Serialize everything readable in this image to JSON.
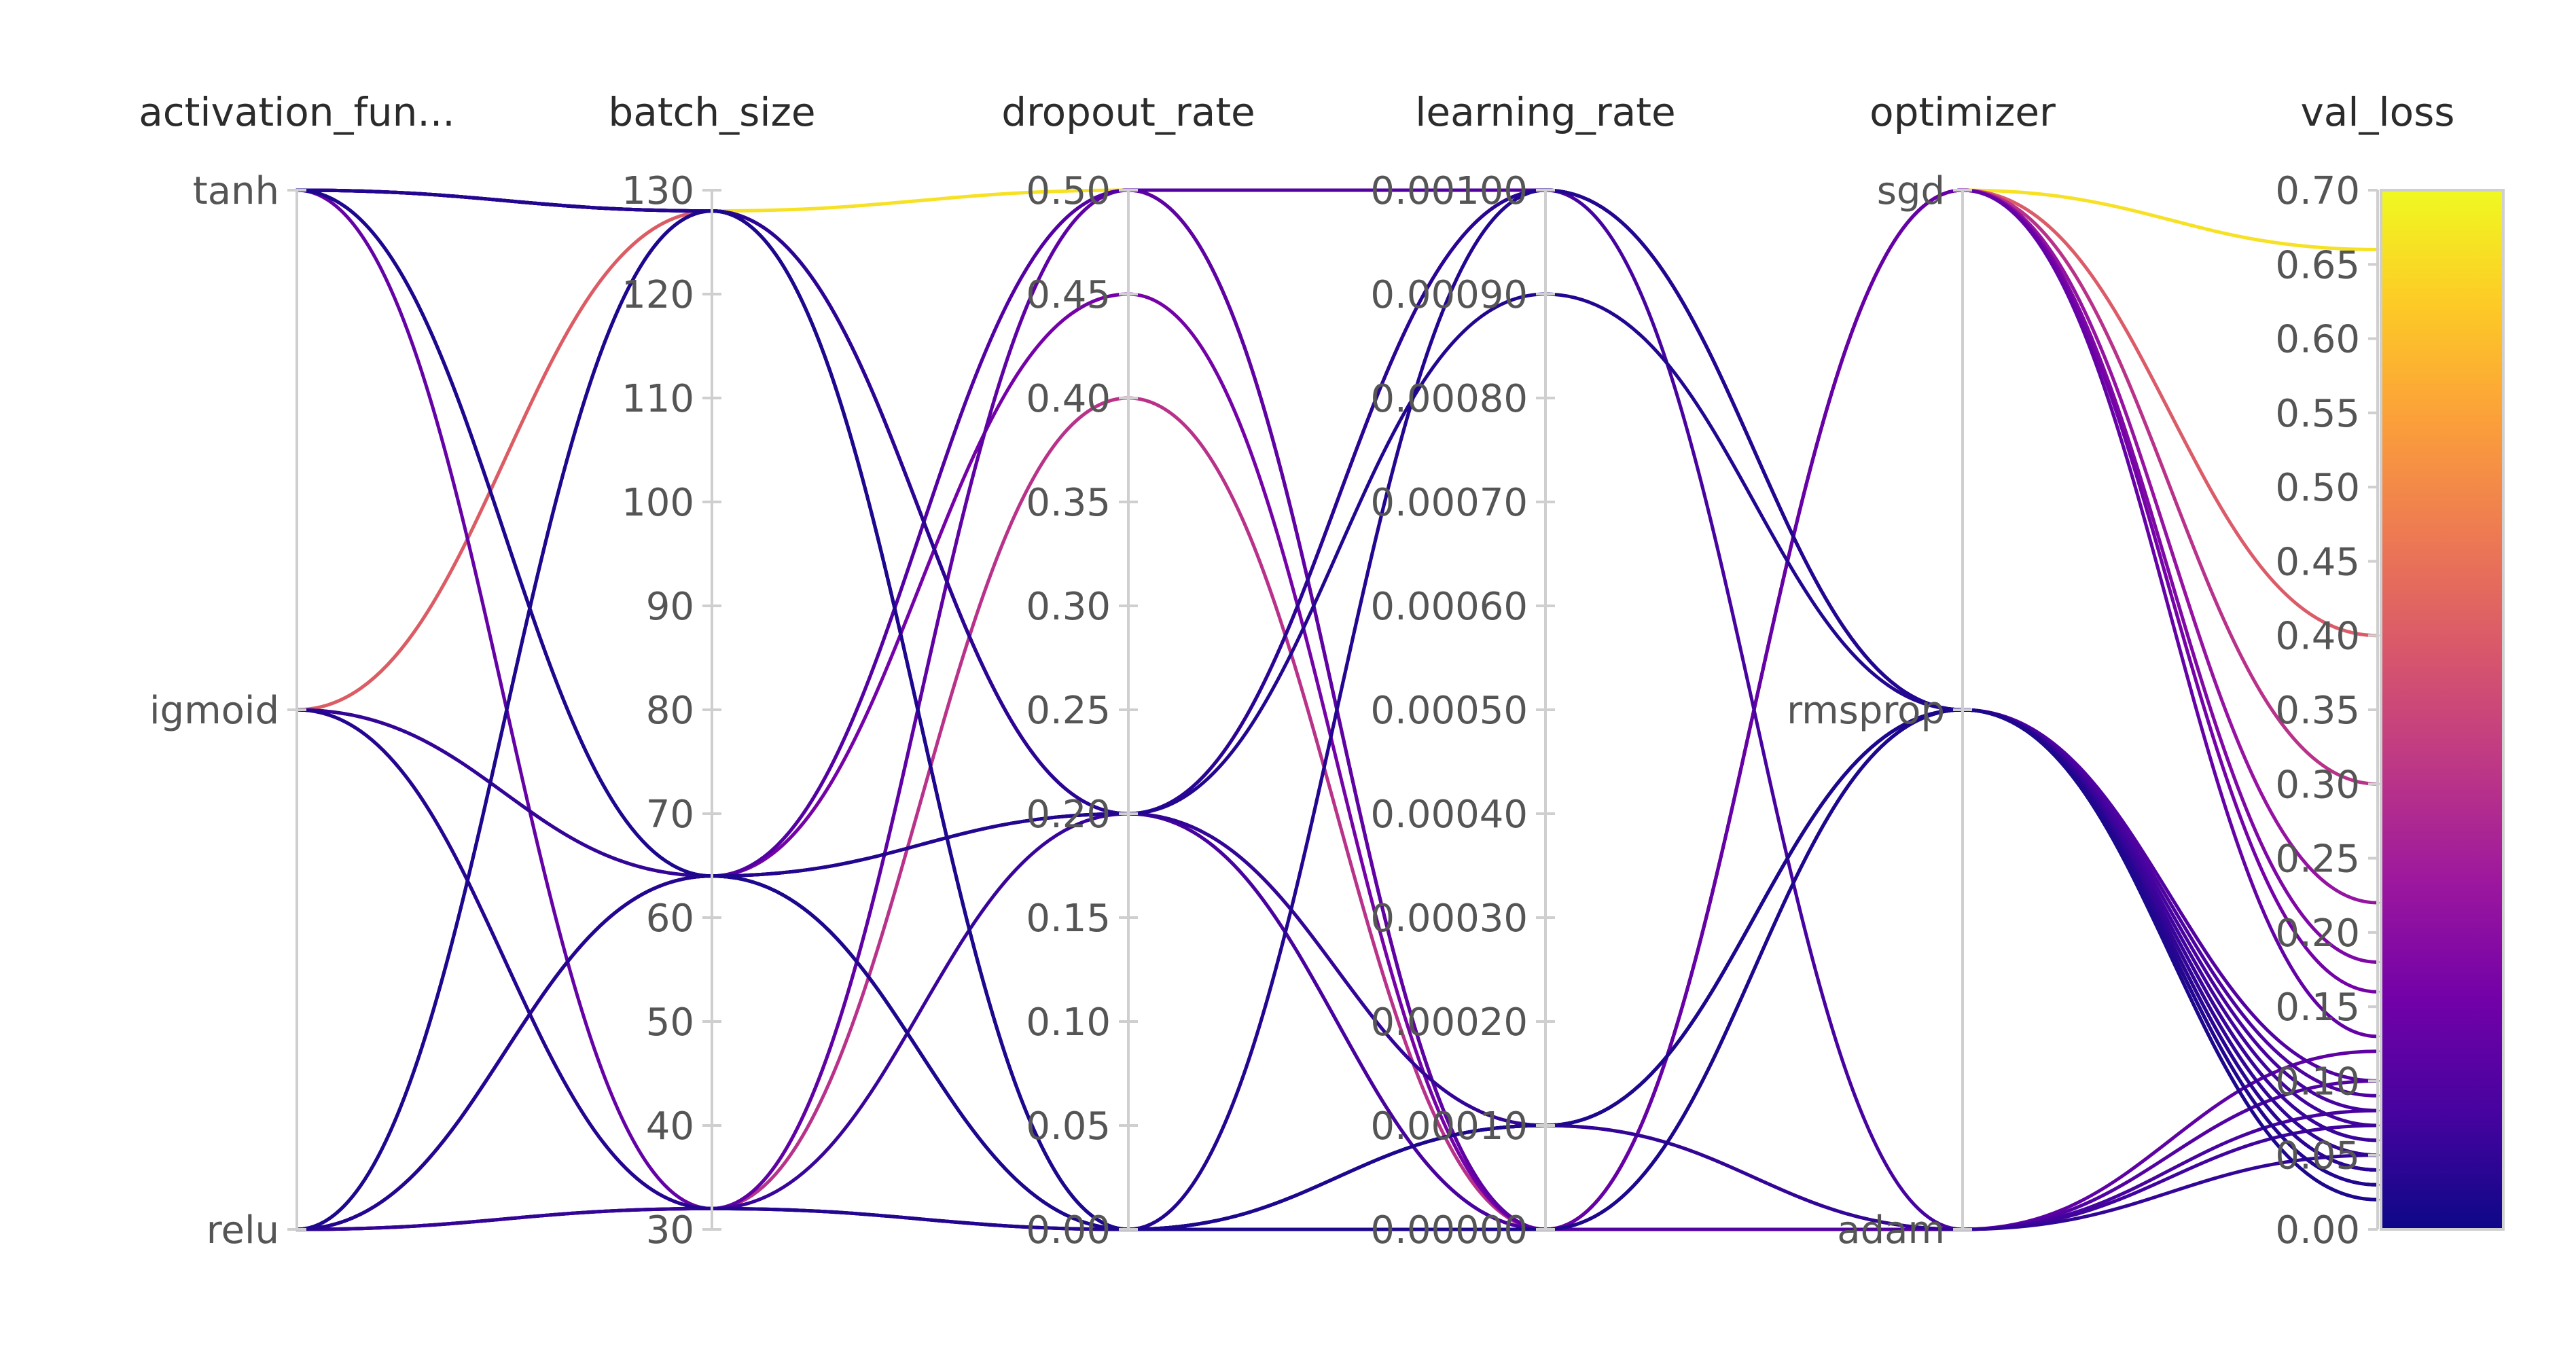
{
  "chart_data": {
    "type": "parallel_coordinates",
    "axes": [
      {
        "key": "activation_function",
        "label": "activation_fun...",
        "kind": "categorical",
        "categories": [
          "relu",
          "sigmoid",
          "tanh"
        ],
        "tick_labels": [
          "relu",
          "igmoid",
          "tanh"
        ]
      },
      {
        "key": "batch_size",
        "label": "batch_size",
        "kind": "numeric",
        "range": [
          30,
          130
        ],
        "ticks": [
          30,
          40,
          50,
          60,
          70,
          80,
          90,
          100,
          110,
          120,
          130
        ],
        "tick_labels": [
          "30",
          "40",
          "50",
          "60",
          "70",
          "80",
          "90",
          "100",
          "110",
          "120",
          "130"
        ]
      },
      {
        "key": "dropout_rate",
        "label": "dropout_rate",
        "kind": "numeric",
        "range": [
          0,
          0.5
        ],
        "ticks": [
          0,
          0.05,
          0.1,
          0.15,
          0.2,
          0.25,
          0.3,
          0.35,
          0.4,
          0.45,
          0.5
        ],
        "tick_labels": [
          "0.00",
          "0.05",
          "0.10",
          "0.15",
          "0.20",
          "0.25",
          "0.30",
          "0.35",
          "0.40",
          "0.45",
          "0.50"
        ]
      },
      {
        "key": "learning_rate",
        "label": "learning_rate",
        "kind": "numeric",
        "range": [
          0,
          0.001
        ],
        "ticks": [
          0,
          0.0001,
          0.0002,
          0.0003,
          0.0004,
          0.0005,
          0.0006,
          0.0007,
          0.0008,
          0.0009,
          0.001
        ],
        "tick_labels": [
          "0.00000",
          "0.00010",
          "0.00020",
          "0.00030",
          "0.00040",
          "0.00050",
          "0.00060",
          "0.00070",
          "0.00080",
          "0.00090",
          "0.00100"
        ]
      },
      {
        "key": "optimizer",
        "label": "optimizer",
        "kind": "categorical",
        "categories": [
          "adam",
          "rmsprop",
          "sgd"
        ],
        "tick_labels": [
          "adam",
          "rmsprop",
          "sgd"
        ]
      },
      {
        "key": "val_loss",
        "label": "val_loss",
        "kind": "numeric",
        "range": [
          0,
          0.7
        ],
        "ticks": [
          0,
          0.05,
          0.1,
          0.15,
          0.2,
          0.25,
          0.3,
          0.35,
          0.4,
          0.45,
          0.5,
          0.55,
          0.6,
          0.65,
          0.7
        ],
        "tick_labels": [
          "0.00",
          "0.05",
          "0.10",
          "0.15",
          "0.20",
          "0.25",
          "0.30",
          "0.35",
          "0.40",
          "0.45",
          "0.50",
          "0.55",
          "0.60",
          "0.65",
          "0.70"
        ]
      }
    ],
    "colorbar": {
      "metric": "val_loss",
      "range": [
        0,
        0.7
      ],
      "stops": [
        "#0d0887",
        "#46039f",
        "#7201a8",
        "#9c179e",
        "#bd3786",
        "#d8576b",
        "#ed7953",
        "#fb9f3a",
        "#fdca26",
        "#f0f921"
      ]
    },
    "runs": [
      {
        "activation_function": "tanh",
        "batch_size": 128,
        "dropout_rate": 0.2,
        "learning_rate": 0.001,
        "optimizer": "rmsprop",
        "val_loss": 0.04
      },
      {
        "activation_function": "tanh",
        "batch_size": 128,
        "dropout_rate": 0.2,
        "learning_rate": 0.001,
        "optimizer": "rmsprop",
        "val_loss": 0.06
      },
      {
        "activation_function": "tanh",
        "batch_size": 128,
        "dropout_rate": 0.0,
        "learning_rate": 0.0001,
        "optimizer": "rmsprop",
        "val_loss": 0.03
      },
      {
        "activation_function": "tanh",
        "batch_size": 128,
        "dropout_rate": 0.0,
        "learning_rate": 0.0001,
        "optimizer": "adam",
        "val_loss": 0.05
      },
      {
        "activation_function": "tanh",
        "batch_size": 64,
        "dropout_rate": 0.0,
        "learning_rate": 0.0,
        "optimizer": "rmsprop",
        "val_loss": 0.02
      },
      {
        "activation_function": "tanh",
        "batch_size": 64,
        "dropout_rate": 0.0,
        "learning_rate": 0.0001,
        "optimizer": "rmsprop",
        "val_loss": 0.04
      },
      {
        "activation_function": "tanh",
        "batch_size": 32,
        "dropout_rate": 0.5,
        "learning_rate": 0.0,
        "optimizer": "sgd",
        "val_loss": 0.13
      },
      {
        "activation_function": "tanh",
        "batch_size": 128,
        "dropout_rate": 0.2,
        "learning_rate": 0.0,
        "optimizer": "sgd",
        "val_loss": 0.22
      },
      {
        "activation_function": "sigmoid",
        "batch_size": 128,
        "dropout_rate": 0.5,
        "learning_rate": 0.0,
        "optimizer": "sgd",
        "val_loss": 0.66
      },
      {
        "activation_function": "sigmoid",
        "batch_size": 128,
        "dropout_rate": 0.2,
        "learning_rate": 0.0,
        "optimizer": "sgd",
        "val_loss": 0.4
      },
      {
        "activation_function": "sigmoid",
        "batch_size": 64,
        "dropout_rate": 0.2,
        "learning_rate": 0.0001,
        "optimizer": "rmsprop",
        "val_loss": 0.05
      },
      {
        "activation_function": "sigmoid",
        "batch_size": 64,
        "dropout_rate": 0.0,
        "learning_rate": 0.0,
        "optimizer": "rmsprop",
        "val_loss": 0.07
      },
      {
        "activation_function": "sigmoid",
        "batch_size": 32,
        "dropout_rate": 0.0,
        "learning_rate": 0.001,
        "optimizer": "rmsprop",
        "val_loss": 0.03
      },
      {
        "activation_function": "sigmoid",
        "batch_size": 32,
        "dropout_rate": 0.5,
        "learning_rate": 0.0,
        "optimizer": "adam",
        "val_loss": 0.12
      },
      {
        "activation_function": "sigmoid",
        "batch_size": 32,
        "dropout_rate": 0.4,
        "learning_rate": 0.0,
        "optimizer": "sgd",
        "val_loss": 0.3
      },
      {
        "activation_function": "relu",
        "batch_size": 128,
        "dropout_rate": 0.0,
        "learning_rate": 0.001,
        "optimizer": "adam",
        "val_loss": 0.08
      },
      {
        "activation_function": "relu",
        "batch_size": 128,
        "dropout_rate": 0.0,
        "learning_rate": 0.0001,
        "optimizer": "rmsprop",
        "val_loss": 0.02
      },
      {
        "activation_function": "relu",
        "batch_size": 64,
        "dropout_rate": 0.2,
        "learning_rate": 0.001,
        "optimizer": "rmsprop",
        "val_loss": 0.04
      },
      {
        "activation_function": "relu",
        "batch_size": 64,
        "dropout_rate": 0.5,
        "learning_rate": 0.0,
        "optimizer": "sgd",
        "val_loss": 0.18
      },
      {
        "activation_function": "relu",
        "batch_size": 64,
        "dropout_rate": 0.2,
        "learning_rate": 0.0009,
        "optimizer": "rmsprop",
        "val_loss": 0.03
      },
      {
        "activation_function": "relu",
        "batch_size": 64,
        "dropout_rate": 0.0,
        "learning_rate": 0.0,
        "optimizer": "adam",
        "val_loss": 0.1
      },
      {
        "activation_function": "relu",
        "batch_size": 64,
        "dropout_rate": 0.45,
        "learning_rate": 0.0,
        "optimizer": "sgd",
        "val_loss": 0.16
      },
      {
        "activation_function": "relu",
        "batch_size": 32,
        "dropout_rate": 0.2,
        "learning_rate": 0.0001,
        "optimizer": "rmsprop",
        "val_loss": 0.06
      },
      {
        "activation_function": "relu",
        "batch_size": 32,
        "dropout_rate": 0.0,
        "learning_rate": 0.0001,
        "optimizer": "rmsprop",
        "val_loss": 0.05
      },
      {
        "activation_function": "relu",
        "batch_size": 32,
        "dropout_rate": 0.0,
        "learning_rate": 0.0,
        "optimizer": "rmsprop",
        "val_loss": 0.09
      },
      {
        "activation_function": "relu",
        "batch_size": 64,
        "dropout_rate": 0.0,
        "learning_rate": 0.0001,
        "optimizer": "adam",
        "val_loss": 0.07
      },
      {
        "activation_function": "relu",
        "batch_size": 128,
        "dropout_rate": 0.2,
        "learning_rate": 0.0,
        "optimizer": "rmsprop",
        "val_loss": 0.08
      },
      {
        "activation_function": "tanh",
        "batch_size": 64,
        "dropout_rate": 0.5,
        "learning_rate": 0.001,
        "optimizer": "rmsprop",
        "val_loss": 0.1
      }
    ]
  }
}
